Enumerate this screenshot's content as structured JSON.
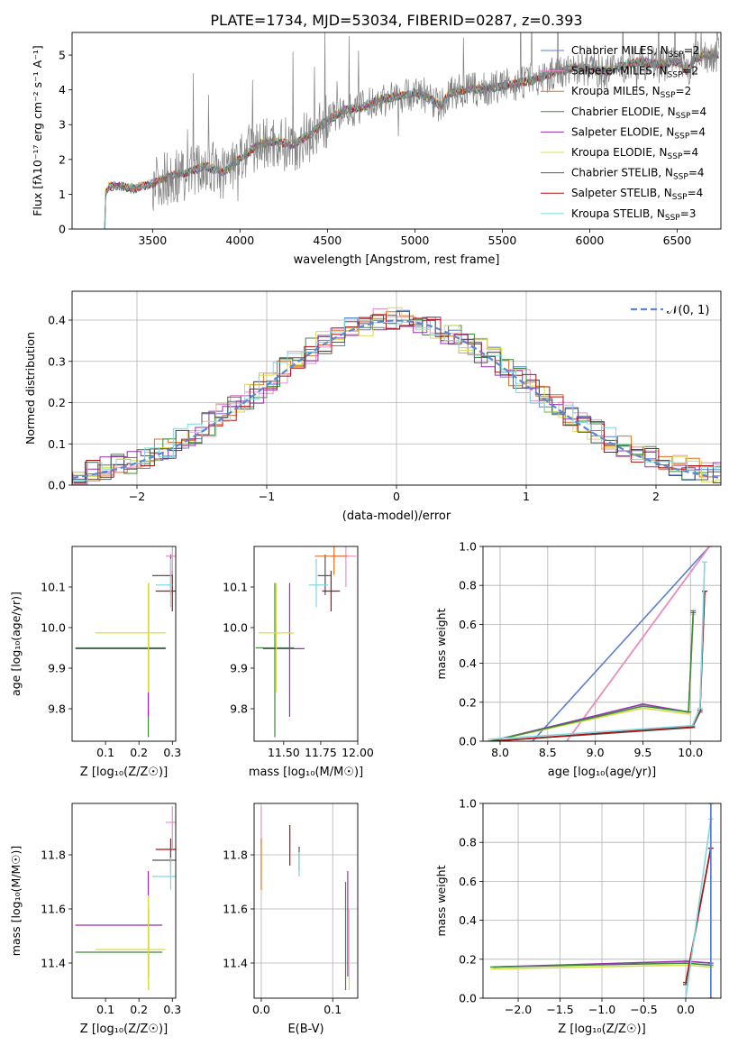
{
  "title": "PLATE=1734, MJD=53034, FIBERID=0287, z=0.393",
  "colors": {
    "chabrier_miles": "#5b7fcc",
    "salpeter_miles": "#e88ccc",
    "kroupa_miles": "#e07020",
    "chabrier_elodie": "#3b8a3b",
    "salpeter_elodie": "#9a2fb5",
    "kroupa_elodie": "#d8de4a",
    "chabrier_stelib": "#555555",
    "salpeter_stelib": "#b01010",
    "kroupa_stelib": "#7fd8e0",
    "data": "#808080",
    "gaussian": "#5b86d0",
    "grid": "#b0b0b0"
  },
  "chart_data": [
    {
      "id": "spectrum",
      "type": "line",
      "xlabel": "wavelength [Angstrom, rest frame]",
      "ylabel": "Flux [fλ10⁻¹⁷ erg cm⁻² s⁻¹ A⁻¹]",
      "xlim": [
        3040,
        6750
      ],
      "ylim": [
        0,
        5.65
      ],
      "xticks": [
        "3500",
        "4000",
        "4500",
        "5000",
        "5500",
        "6000",
        "6500"
      ],
      "yticks": [
        "0",
        "1",
        "2",
        "3",
        "4",
        "5"
      ],
      "legend": [
        {
          "key": "chabrier_miles",
          "label": "Chabrier MILES, N",
          "sub": "SSP",
          "suffix": "=2"
        },
        {
          "key": "salpeter_miles",
          "label": "Salpeter MILES, N",
          "sub": "SSP",
          "suffix": "=2"
        },
        {
          "key": "kroupa_miles",
          "label": "Kroupa MILES, N",
          "sub": "SSP",
          "suffix": "=2"
        },
        {
          "key": "chabrier_elodie",
          "label": "Chabrier ELODIE, N",
          "sub": "SSP",
          "suffix": "=4"
        },
        {
          "key": "salpeter_elodie",
          "label": "Salpeter ELODIE, N",
          "sub": "SSP",
          "suffix": "=4"
        },
        {
          "key": "kroupa_elodie",
          "label": "Kroupa ELODIE, N",
          "sub": "SSP",
          "suffix": "=4"
        },
        {
          "key": "chabrier_stelib",
          "label": "Chabrier STELIB, N",
          "sub": "SSP",
          "suffix": "=4"
        },
        {
          "key": "salpeter_stelib",
          "label": "Salpeter STELIB, N",
          "sub": "SSP",
          "suffix": "=4"
        },
        {
          "key": "kroupa_stelib",
          "label": "Kroupa STELIB, N",
          "sub": "SSP",
          "suffix": "=3"
        }
      ],
      "continuum": [
        [
          3220,
          0
        ],
        [
          3230,
          1.0
        ],
        [
          3250,
          1.2
        ],
        [
          3300,
          1.22
        ],
        [
          3400,
          1.15
        ],
        [
          3500,
          1.3
        ],
        [
          3600,
          1.5
        ],
        [
          3700,
          1.6
        ],
        [
          3800,
          1.8
        ],
        [
          3900,
          1.6
        ],
        [
          4000,
          2.0
        ],
        [
          4100,
          2.4
        ],
        [
          4200,
          2.5
        ],
        [
          4300,
          2.4
        ],
        [
          4400,
          2.7
        ],
        [
          4500,
          3.1
        ],
        [
          4600,
          3.4
        ],
        [
          4700,
          3.5
        ],
        [
          4800,
          3.7
        ],
        [
          4900,
          3.8
        ],
        [
          5000,
          3.9
        ],
        [
          5100,
          3.7
        ],
        [
          5150,
          3.5
        ],
        [
          5200,
          3.9
        ],
        [
          5300,
          4.0
        ],
        [
          5400,
          4.0
        ],
        [
          5500,
          4.1
        ],
        [
          5600,
          4.2
        ],
        [
          5700,
          4.3
        ],
        [
          5800,
          4.5
        ],
        [
          5900,
          4.6
        ],
        [
          6000,
          4.6
        ],
        [
          6100,
          4.5
        ],
        [
          6200,
          4.7
        ],
        [
          6300,
          4.8
        ],
        [
          6400,
          4.7
        ],
        [
          6500,
          4.8
        ],
        [
          6560,
          4.5
        ],
        [
          6600,
          4.9
        ],
        [
          6700,
          5.0
        ]
      ]
    },
    {
      "id": "residuals",
      "type": "line",
      "xlabel": "(data-model)/error",
      "ylabel": "Normed distribution",
      "xlim": [
        -2.5,
        2.5
      ],
      "ylim": [
        0,
        0.47
      ],
      "xticks": [
        "−2",
        "−1",
        "0",
        "1",
        "2"
      ],
      "yticks": [
        "0.0",
        "0.1",
        "0.2",
        "0.3",
        "0.4"
      ],
      "grid": true,
      "legend_label": "𝒩(0, 1)"
    },
    {
      "id": "age_vs_Z",
      "type": "scatter",
      "xlabel": "Z [log₁₀(Z/Z☉)]",
      "ylabel": "age  [log₁₀(age/yr)]",
      "xlim": [
        0.0,
        0.31
      ],
      "ylim": [
        9.72,
        10.2
      ],
      "xticks": [
        "0.1",
        "0.2",
        "0.3"
      ],
      "yticks": [
        "9.8",
        "9.9",
        "10.0",
        "10.1"
      ],
      "points": [
        {
          "key": "chabrier_elodie",
          "x": 0.228,
          "y": 9.95,
          "xe": [
            0.01,
            0.28
          ],
          "ye": [
            9.73,
            10.11
          ]
        },
        {
          "key": "salpeter_elodie",
          "x": 0.228,
          "y": 9.948,
          "xe": [
            0.01,
            0.28
          ],
          "ye": [
            9.78,
            10.11
          ]
        },
        {
          "key": "kroupa_elodie",
          "x": 0.228,
          "y": 9.987,
          "xe": [
            0.07,
            0.28
          ],
          "ye": [
            9.84,
            10.11
          ]
        },
        {
          "key": "chabrier_stelib",
          "x": 0.295,
          "y": 10.128,
          "xe": [
            0.24,
            0.3
          ],
          "ye": [
            10.08,
            10.18
          ]
        },
        {
          "key": "salpeter_stelib",
          "x": 0.3,
          "y": 10.09,
          "xe": [
            0.25,
            0.31
          ],
          "ye": [
            10.04,
            10.14
          ]
        },
        {
          "key": "kroupa_stelib",
          "x": 0.295,
          "y": 10.105,
          "xe": [
            0.25,
            0.3
          ],
          "ye": [
            10.05,
            10.17
          ]
        },
        {
          "key": "salpeter_miles",
          "x": 0.3,
          "y": 10.176,
          "xe": [
            0.28,
            0.31
          ],
          "ye": [
            10.13,
            10.2
          ]
        }
      ]
    },
    {
      "id": "age_vs_mass",
      "type": "scatter",
      "xlabel": "mass [log₁₀(M/M☉)]",
      "ylabel": "",
      "xlim": [
        11.3,
        12.0
      ],
      "ylim": [
        9.72,
        10.2
      ],
      "xticks": [
        "11.50",
        "11.75",
        "12.00"
      ],
      "yticks": [
        "9.8",
        "9.9",
        "10.0",
        "10.1"
      ],
      "points": [
        {
          "key": "chabrier_elodie",
          "x": 11.44,
          "y": 9.95,
          "xe": [
            11.31,
            11.57
          ],
          "ye": [
            9.73,
            10.11
          ]
        },
        {
          "key": "salpeter_elodie",
          "x": 11.54,
          "y": 9.948,
          "xe": [
            11.36,
            11.64
          ],
          "ye": [
            9.78,
            10.11
          ]
        },
        {
          "key": "kroupa_elodie",
          "x": 11.45,
          "y": 9.987,
          "xe": [
            11.33,
            11.57
          ],
          "ye": [
            9.84,
            10.11
          ]
        },
        {
          "key": "chabrier_stelib",
          "x": 11.78,
          "y": 10.128,
          "xe": [
            11.73,
            11.82
          ],
          "ye": [
            10.08,
            10.18
          ]
        },
        {
          "key": "salpeter_stelib",
          "x": 11.82,
          "y": 10.09,
          "xe": [
            11.76,
            11.88
          ],
          "ye": [
            10.04,
            10.14
          ]
        },
        {
          "key": "kroupa_stelib",
          "x": 11.72,
          "y": 10.105,
          "xe": [
            11.67,
            11.8
          ],
          "ye": [
            10.05,
            10.17
          ]
        },
        {
          "key": "salpeter_miles",
          "x": 11.92,
          "y": 10.176,
          "xe": [
            11.82,
            11.99
          ],
          "ye": [
            10.1,
            10.2
          ]
        },
        {
          "key": "kroupa_miles",
          "x": 11.84,
          "y": 10.176,
          "xe": [
            11.71,
            11.93
          ],
          "ye": [
            10.13,
            10.2
          ]
        }
      ]
    },
    {
      "id": "weight_vs_age",
      "type": "line",
      "xlabel": "age  [log₁₀(age/yr)]",
      "ylabel": "mass weight",
      "xlim": [
        7.82,
        10.32
      ],
      "ylim": [
        0,
        1.0
      ],
      "xticks": [
        "8.0",
        "8.5",
        "9.0",
        "9.5",
        "10.0"
      ],
      "yticks": [
        "0.0",
        "0.2",
        "0.4",
        "0.6",
        "0.8",
        "1.0"
      ],
      "grid": true,
      "series": [
        {
          "key": "chabrier_miles",
          "x": [
            8.34,
            10.2
          ],
          "y": [
            0.0,
            1.0
          ]
        },
        {
          "key": "kroupa_miles",
          "x": [
            8.7,
            10.2
          ],
          "y": [
            0.0,
            1.0
          ]
        },
        {
          "key": "salpeter_miles",
          "x": [
            8.7,
            10.2
          ],
          "y": [
            0.0,
            1.0
          ]
        },
        {
          "key": "salpeter_elodie",
          "x": [
            7.9,
            9.5,
            9.98,
            10.03
          ],
          "y": [
            0.0,
            0.19,
            0.15,
            0.66
          ]
        },
        {
          "key": "kroupa_elodie",
          "x": [
            7.9,
            9.5,
            9.98,
            10.03
          ],
          "y": [
            0.0,
            0.17,
            0.14,
            0.65
          ]
        },
        {
          "key": "chabrier_elodie",
          "x": [
            7.9,
            9.5,
            9.98,
            10.03
          ],
          "y": [
            0.0,
            0.18,
            0.15,
            0.67
          ]
        },
        {
          "key": "chabrier_stelib",
          "x": [
            7.9,
            10.02,
            10.1,
            10.15
          ],
          "y": [
            0.0,
            0.07,
            0.15,
            0.77
          ]
        },
        {
          "key": "salpeter_stelib",
          "x": [
            7.9,
            10.02,
            10.1,
            10.15
          ],
          "y": [
            0.0,
            0.075,
            0.16,
            0.77
          ]
        },
        {
          "key": "kroupa_stelib",
          "x": [
            7.9,
            10.02,
            10.1,
            10.15
          ],
          "y": [
            0.01,
            0.08,
            0.17,
            0.92
          ]
        }
      ]
    },
    {
      "id": "mass_vs_Z",
      "type": "scatter",
      "xlabel": "Z [log₁₀(Z/Z☉)]",
      "ylabel": "mass [log₁₀(M/M☉)]",
      "xlim": [
        0.0,
        0.31
      ],
      "ylim": [
        11.27,
        11.99
      ],
      "xticks": [
        "0.1",
        "0.2",
        "0.3"
      ],
      "yticks": [
        "11.4",
        "11.6",
        "11.8"
      ],
      "points": [
        {
          "key": "chabrier_elodie",
          "x": 0.228,
          "y": 11.44,
          "xe": [
            0.01,
            0.27
          ],
          "ye": [
            11.3,
            11.6
          ]
        },
        {
          "key": "salpeter_elodie",
          "x": 0.228,
          "y": 11.54,
          "xe": [
            0.01,
            0.27
          ],
          "ye": [
            11.35,
            11.74
          ]
        },
        {
          "key": "kroupa_elodie",
          "x": 0.228,
          "y": 11.45,
          "xe": [
            0.07,
            0.28
          ],
          "ye": [
            11.3,
            11.65
          ]
        },
        {
          "key": "salpeter_stelib",
          "x": 0.295,
          "y": 11.82,
          "xe": [
            0.25,
            0.31
          ],
          "ye": [
            11.77,
            11.86
          ]
        },
        {
          "key": "chabrier_stelib",
          "x": 0.295,
          "y": 11.78,
          "xe": [
            0.24,
            0.31
          ],
          "ye": [
            11.73,
            11.83
          ]
        },
        {
          "key": "kroupa_stelib",
          "x": 0.295,
          "y": 11.72,
          "xe": [
            0.24,
            0.31
          ],
          "ye": [
            11.67,
            11.79
          ]
        },
        {
          "key": "salpeter_miles",
          "x": 0.3,
          "y": 11.92,
          "xe": [
            0.28,
            0.31
          ],
          "ye": [
            11.82,
            11.98
          ]
        }
      ]
    },
    {
      "id": "mass_vs_ebv",
      "type": "scatter",
      "xlabel": "E(B-V)",
      "ylabel": "",
      "xlim": [
        -0.01,
        0.135
      ],
      "ylim": [
        11.27,
        11.99
      ],
      "xticks": [
        "0.0",
        "0.1"
      ],
      "yticks": [
        "11.4",
        "11.6",
        "11.8"
      ],
      "grid": true,
      "points": [
        {
          "key": "salpeter_miles",
          "x": 0.0,
          "y": 11.92,
          "ye": [
            11.84,
            11.98
          ]
        },
        {
          "key": "kroupa_miles",
          "x": 0.0,
          "y": 11.78,
          "ye": [
            11.67,
            11.86
          ]
        },
        {
          "key": "salpeter_stelib",
          "x": 0.04,
          "y": 11.83,
          "ye": [
            11.76,
            11.91
          ]
        },
        {
          "key": "chabrier_stelib",
          "x": 0.053,
          "y": 11.78,
          "ye": [
            11.74,
            11.83
          ]
        },
        {
          "key": "kroupa_stelib",
          "x": 0.053,
          "y": 11.76,
          "ye": [
            11.72,
            11.81
          ]
        },
        {
          "key": "chabrier_elodie",
          "x": 0.118,
          "y": 11.5,
          "ye": [
            11.3,
            11.7
          ]
        },
        {
          "key": "salpeter_elodie",
          "x": 0.121,
          "y": 11.56,
          "ye": [
            11.35,
            11.74
          ]
        },
        {
          "key": "kroupa_elodie",
          "x": 0.123,
          "y": 11.45,
          "ye": [
            11.3,
            11.6
          ]
        }
      ]
    },
    {
      "id": "weight_vs_Z",
      "type": "line",
      "xlabel": "Z [log₁₀(Z/Z☉)]",
      "ylabel": "mass weight",
      "xlim": [
        -2.42,
        0.42
      ],
      "ylim": [
        0,
        1.0
      ],
      "xticks": [
        "−2.0",
        "−1.5",
        "−1.0",
        "−0.5",
        "0.0"
      ],
      "yticks": [
        "0.0",
        "0.2",
        "0.4",
        "0.6",
        "0.8",
        "1.0"
      ],
      "grid": true,
      "series": [
        {
          "key": "salpeter_elodie",
          "x": [
            -2.3,
            0.0,
            0.3
          ],
          "y": [
            0.16,
            0.19,
            0.18
          ]
        },
        {
          "key": "chabrier_elodie",
          "x": [
            -2.3,
            0.0,
            0.3
          ],
          "y": [
            0.16,
            0.18,
            0.17
          ]
        },
        {
          "key": "kroupa_elodie",
          "x": [
            -2.3,
            0.0,
            0.3
          ],
          "y": [
            0.15,
            0.17,
            0.16
          ]
        },
        {
          "key": "chabrier_stelib",
          "x": [
            0.0,
            0.3
          ],
          "y": [
            0.07,
            0.77
          ]
        },
        {
          "key": "salpeter_stelib",
          "x": [
            0.0,
            0.3
          ],
          "y": [
            0.08,
            0.77
          ]
        },
        {
          "key": "kroupa_stelib",
          "x": [
            0.0,
            0.3
          ],
          "y": [
            0.0,
            0.92
          ]
        },
        {
          "key": "kroupa_miles",
          "x": [
            0.3,
            0.3
          ],
          "y": [
            0.0,
            1.0
          ]
        },
        {
          "key": "salpeter_miles",
          "x": [
            0.3,
            0.3
          ],
          "y": [
            0.0,
            1.0
          ]
        },
        {
          "key": "chabrier_miles",
          "x": [
            0.3,
            0.3
          ],
          "y": [
            0.0,
            1.0
          ]
        }
      ]
    }
  ]
}
